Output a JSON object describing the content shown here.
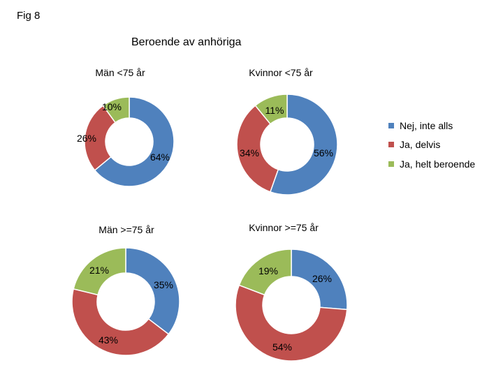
{
  "figure_label": "Fig 8",
  "title": "Beroende av anhöriga",
  "legend": [
    {
      "label": "Nej, inte alls",
      "color": "#4F81BD"
    },
    {
      "label": "Ja, delvis",
      "color": "#C0504D"
    },
    {
      "label": "Ja, helt beroende",
      "color": "#9BBB59"
    }
  ],
  "chart_data": [
    {
      "type": "pie",
      "variant": "donut",
      "title": "Män <75 år",
      "categories": [
        "Nej, inte alls",
        "Ja, delvis",
        "Ja, helt beroende"
      ],
      "values": [
        64,
        26,
        10
      ],
      "labels": [
        "64%",
        "26%",
        "10%"
      ]
    },
    {
      "type": "pie",
      "variant": "donut",
      "title": "Kvinnor <75 år",
      "categories": [
        "Nej, inte alls",
        "Ja, delvis",
        "Ja, helt beroende"
      ],
      "values": [
        56,
        34,
        11
      ],
      "labels": [
        "56%",
        "34%",
        "11%"
      ]
    },
    {
      "type": "pie",
      "variant": "donut",
      "title": "Män >=75 år",
      "categories": [
        "Nej, inte alls",
        "Ja, delvis",
        "Ja, helt beroende"
      ],
      "values": [
        35,
        43,
        21
      ],
      "labels": [
        "35%",
        "43%",
        "21%"
      ]
    },
    {
      "type": "pie",
      "variant": "donut",
      "title": "Kvinnor >=75 år",
      "categories": [
        "Nej, inte alls",
        "Ja, delvis",
        "Ja, helt beroende"
      ],
      "values": [
        26,
        54,
        19
      ],
      "labels": [
        "26%",
        "54%",
        "19%"
      ]
    }
  ]
}
